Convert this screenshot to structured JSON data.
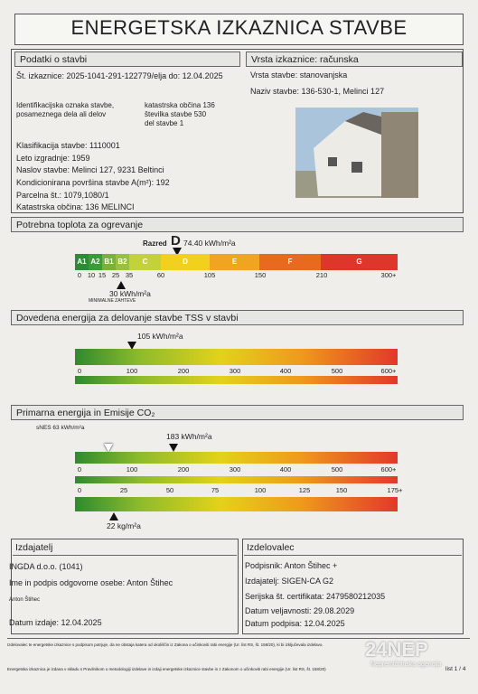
{
  "title": "ENERGETSKA IZKAZNICA STAVBE",
  "building": {
    "heading": "Podatki o stavbi",
    "card_no": "Št. izkaznice: 2025-1041-291-122779/elja do: 12.04.2025",
    "type": "Vrsta izkaznice: računska",
    "building_type": "Vrsta stavbe: stanovanjska",
    "name": "Naziv stavbe: 136-530-1, Melinci 127",
    "ident_label": "Identifikacijska oznaka stavbe, posameznega dela ali delov",
    "ident_values": [
      "katastrska občina 136",
      "številka stavbe 530",
      "del stavbe 1"
    ],
    "lines": [
      "Klasifikacija stavbe: 1110001",
      "Leto izgradnje: 1959",
      "Naslov stavbe: Melinci 127, 9231 Beltinci",
      "Kondicionirana površina stavbe A(m²): 192",
      "Parcelna št.: 1079,1080/1",
      "Katastrska občina: 136 MELINCI"
    ]
  },
  "heating": {
    "heading": "Potrebna toplota za ogrevanje",
    "class_label": "Razred",
    "class": "D",
    "value": "74.40 kWh/m²a",
    "classes": [
      "A1",
      "A2",
      "B1",
      "B2",
      "C",
      "D",
      "E",
      "F",
      "G"
    ],
    "ticks": [
      0,
      10,
      15,
      25,
      35,
      60,
      105,
      150,
      210,
      "300+"
    ],
    "minimum": "30 kWh/m²a",
    "minimum_label": "MINIMALNE ZAHTEVE"
  },
  "delivered": {
    "heading": "Dovedena energija za delovanje stavbe TSS v stavbi",
    "value": "105 kWh/m²a",
    "ticks": [
      0,
      100,
      200,
      300,
      400,
      500,
      "600+"
    ]
  },
  "primary": {
    "heading": "Primarna energija in Emisije CO₂",
    "reference": "sNES 63 kWh/m²a",
    "value": "183 kWh/m²a",
    "ticks": [
      0,
      100,
      200,
      300,
      400,
      500,
      "600+"
    ],
    "co2_ticks": [
      0,
      25,
      50,
      75,
      100,
      125,
      150,
      "175+"
    ],
    "co2_value": "22 kg/m²a"
  },
  "issuer": {
    "heading": "Izdajatelj",
    "company": "INGDA d.o.o. (1041)",
    "person": "Ime in podpis odgovorne osebe: Anton Štihec",
    "signature": "Anton Štihec",
    "date": "Datum izdaje: 12.04.2025"
  },
  "maker": {
    "heading": "Izdelovalec",
    "lines": [
      "Podpisnik: Anton Štihec +",
      "Izdajatelj: SIGEN-CA G2",
      "Serijska št. certifikata: 2479580212035",
      "Datum veljavnosti: 29.08.2029",
      "Datum podpisa: 12.04.2025"
    ]
  },
  "footer": {
    "note1": "Izdelovalec te energetske izkaznice s podpisom potrjuje, da ne obstaja katera od okoliščin iz Zakona o učinkoviti rabi energije (Ur. list RS, št. 158/20), ki bi izključevala izdelavo.",
    "note2": "Energetska izkaznica je izdana v skladu s Pravilnikom o metodologiji izdelave in izdaji energetske izkaznice stavbe in z Zakonom o učinkoviti rabi energije (Ur. list RS, št. 158/20)",
    "page": "list 1 / 4"
  },
  "watermark": {
    "brand": "24NEP",
    "tagline": "Nepremičninska agencija"
  }
}
